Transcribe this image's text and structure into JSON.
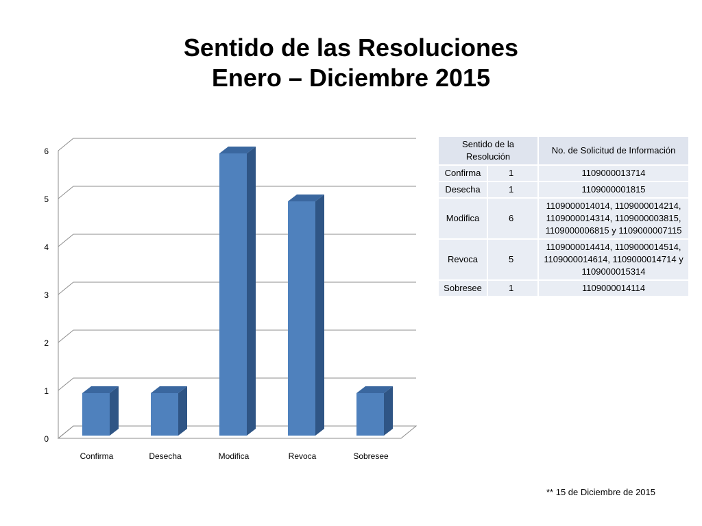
{
  "title": {
    "line1": "Sentido de las Resoluciones",
    "line2": "Enero – Diciembre 2015"
  },
  "chart_data": {
    "type": "bar",
    "style": "3d-column",
    "categories": [
      "Confirma",
      "Desecha",
      "Modifica",
      "Revoca",
      "Sobresee"
    ],
    "values": [
      1,
      1,
      6,
      5,
      1
    ],
    "ylim": [
      0,
      6
    ],
    "yticks": [
      "0",
      "1",
      "2",
      "3",
      "4",
      "5",
      "6"
    ],
    "grid": true,
    "legend": "none",
    "bar_color": "#4f81bd",
    "bar_side_color": "#2f5585",
    "bar_top_color": "#3a679f"
  },
  "table": {
    "headers": [
      "Sentido de la Resolución",
      "No. de Solicitud de Información"
    ],
    "rows": [
      {
        "name": "Confirma",
        "count": "1",
        "ids": "1109000013714"
      },
      {
        "name": "Desecha",
        "count": "1",
        "ids": "1109000001815"
      },
      {
        "name": "Modifica",
        "count": "6",
        "ids": "1109000014014, 1109000014214, 1109000014314, 1109000003815, 1109000006815 y 1109000007115"
      },
      {
        "name": "Revoca",
        "count": "5",
        "ids": "1109000014414, 1109000014514, 1109000014614, 1109000014714 y 1109000015314"
      },
      {
        "name": "Sobresee",
        "count": "1",
        "ids": "1109000014114"
      }
    ]
  },
  "footnote": "** 15 de Diciembre de 2015"
}
